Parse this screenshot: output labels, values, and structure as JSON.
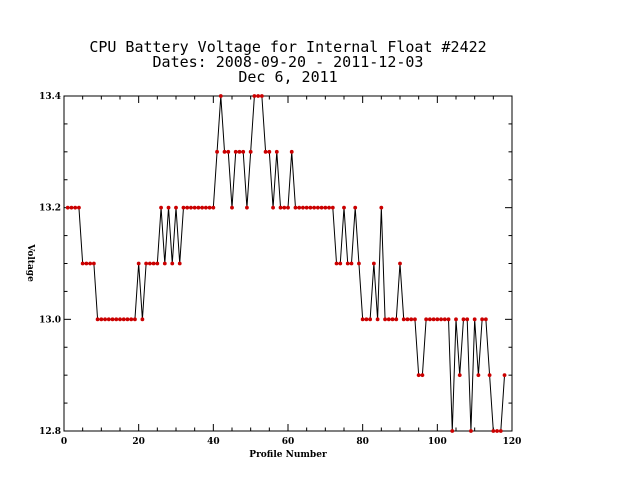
{
  "chart_data": {
    "type": "line",
    "title_lines": [
      "CPU Battery Voltage for Internal Float #2422",
      "Dates:  2008-09-20 -  2011-12-03",
      "Dec  6, 2011"
    ],
    "xlabel": "Profile Number",
    "ylabel": "Voltage",
    "xlim": [
      0,
      120
    ],
    "ylim": [
      12.8,
      13.4
    ],
    "x_ticks": [
      0,
      20,
      40,
      60,
      80,
      100,
      120
    ],
    "x_tick_labels": [
      "0",
      "20",
      "40",
      "60",
      "80",
      "100",
      "120"
    ],
    "y_ticks": [
      12.8,
      13.0,
      13.2,
      13.4
    ],
    "y_tick_labels": [
      "12.8",
      "13.0",
      "13.2",
      "13.4"
    ],
    "grid": false,
    "line_color": "#000000",
    "marker_color": "#cc0000",
    "series": [
      {
        "x": [
          1,
          2,
          3,
          4,
          5,
          6,
          7,
          8,
          9,
          10,
          11,
          12,
          13,
          14,
          15,
          16,
          17,
          18,
          19,
          20,
          21,
          22,
          23,
          24,
          25,
          26,
          27,
          28,
          29,
          30,
          31,
          32,
          33,
          34,
          35,
          36,
          37,
          38,
          39,
          40,
          41,
          42,
          43,
          44,
          45,
          46,
          47,
          48,
          49,
          50,
          51,
          52,
          53,
          54,
          55,
          56,
          57,
          58,
          59,
          60,
          61,
          62,
          63,
          64,
          65,
          66,
          67,
          68,
          69,
          70,
          71,
          72,
          73,
          74,
          75,
          76,
          77,
          78,
          79,
          80,
          81,
          82,
          83,
          84,
          85,
          86,
          87,
          88,
          89,
          90,
          91,
          92,
          93,
          94,
          95,
          96,
          97,
          98,
          99,
          100,
          101,
          102,
          103,
          104,
          105,
          106,
          107,
          108,
          109,
          110,
          111,
          112,
          113,
          114,
          115,
          116,
          117,
          118
        ],
        "y": [
          13.2,
          13.2,
          13.2,
          13.2,
          13.1,
          13.1,
          13.1,
          13.1,
          13.0,
          13.0,
          13.0,
          13.0,
          13.0,
          13.0,
          13.0,
          13.0,
          13.0,
          13.0,
          13.0,
          13.1,
          13.0,
          13.1,
          13.1,
          13.1,
          13.1,
          13.2,
          13.1,
          13.2,
          13.1,
          13.2,
          13.1,
          13.2,
          13.2,
          13.2,
          13.2,
          13.2,
          13.2,
          13.2,
          13.2,
          13.2,
          13.3,
          13.4,
          13.3,
          13.3,
          13.2,
          13.3,
          13.3,
          13.3,
          13.2,
          13.3,
          13.4,
          13.4,
          13.4,
          13.3,
          13.3,
          13.2,
          13.3,
          13.2,
          13.2,
          13.2,
          13.3,
          13.2,
          13.2,
          13.2,
          13.2,
          13.2,
          13.2,
          13.2,
          13.2,
          13.2,
          13.2,
          13.2,
          13.1,
          13.1,
          13.2,
          13.1,
          13.1,
          13.2,
          13.1,
          13.0,
          13.0,
          13.0,
          13.1,
          13.0,
          13.2,
          13.0,
          13.0,
          13.0,
          13.0,
          13.1,
          13.0,
          13.0,
          13.0,
          13.0,
          12.9,
          12.9,
          13.0,
          13.0,
          13.0,
          13.0,
          13.0,
          13.0,
          13.0,
          12.8,
          13.0,
          12.9,
          13.0,
          13.0,
          12.8,
          13.0,
          12.9,
          13.0,
          13.0,
          12.9,
          12.8,
          12.8,
          12.8,
          12.9
        ]
      }
    ]
  }
}
